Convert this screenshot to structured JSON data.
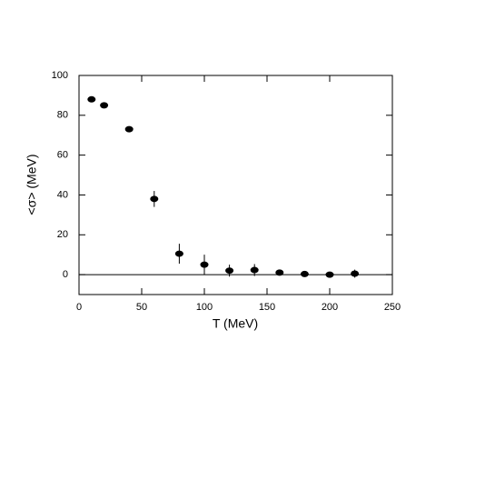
{
  "chart_data": {
    "type": "scatter",
    "xlabel": "T (MeV)",
    "ylabel": "<σ> (MeV)",
    "x": [
      10,
      20,
      40,
      60,
      80,
      100,
      120,
      140,
      160,
      180,
      200,
      220
    ],
    "values": [
      88,
      85,
      73,
      38,
      10.5,
      5,
      2,
      2.3,
      1,
      0.3,
      0,
      0.5
    ],
    "errors": [
      1,
      1,
      1,
      4,
      5,
      5,
      3,
      3,
      1,
      1,
      0.5,
      2
    ],
    "color": "#000000",
    "xlim": [
      0,
      250
    ],
    "xticks": [
      0,
      50,
      100,
      150,
      200,
      250
    ],
    "ylim": [
      -10,
      100
    ],
    "yticks": [
      0,
      20,
      40,
      60,
      80,
      100
    ],
    "hline": 0
  }
}
